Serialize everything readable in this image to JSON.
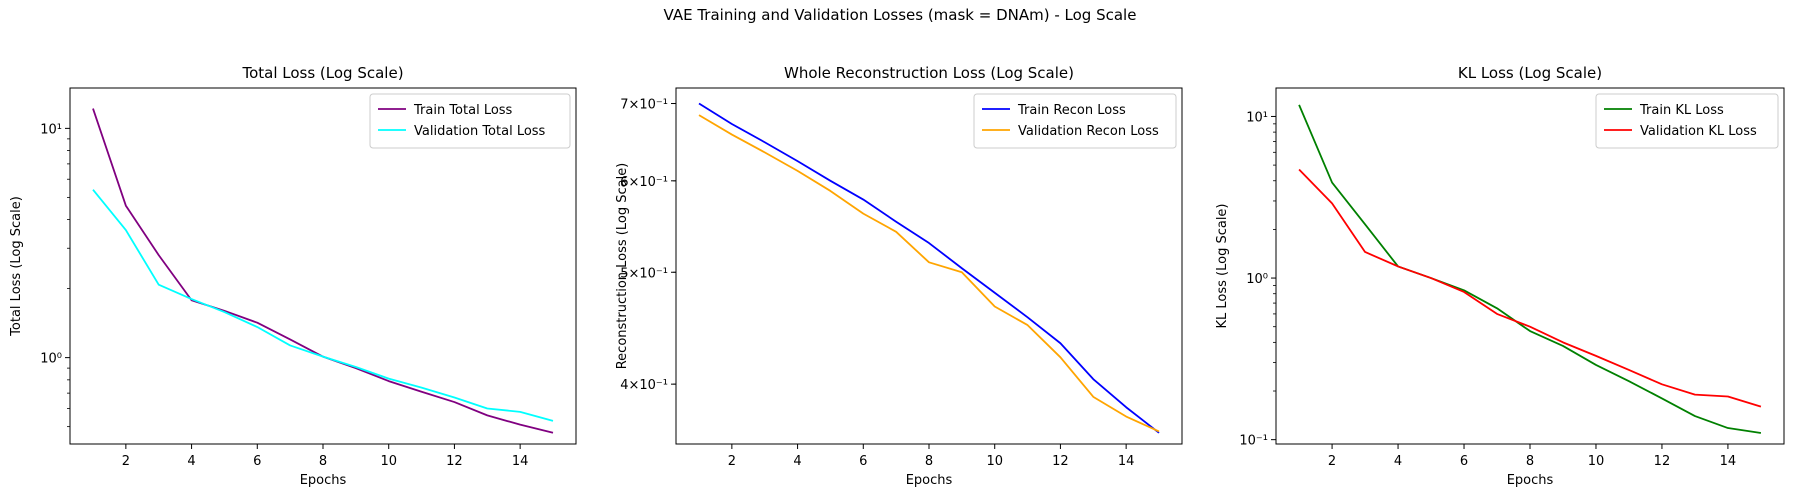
{
  "figure": {
    "suptitle": "VAE Training and Validation Losses (mask = DNAm) - Log Scale"
  },
  "chart_data": [
    {
      "type": "line",
      "title": "Total Loss (Log Scale)",
      "xlabel": "Epochs",
      "ylabel": "Total Loss (Log Scale)",
      "yscale": "log",
      "xlim": [
        0.3,
        15.7
      ],
      "ylim": [
        0.42,
        15
      ],
      "x": [
        1,
        2,
        3,
        4,
        5,
        6,
        7,
        8,
        9,
        10,
        11,
        12,
        13,
        14,
        15
      ],
      "xticks": [
        2,
        4,
        6,
        8,
        10,
        12,
        14
      ],
      "xtick_labels": [
        "2",
        "4",
        "6",
        "8",
        "10",
        "12",
        "14"
      ],
      "yticks": [
        1,
        10
      ],
      "ytick_labels": [
        "10⁰",
        "10¹"
      ],
      "legend_position": "top-right",
      "grid": false,
      "series": [
        {
          "name": "Train Total Loss",
          "color": "#800080",
          "values": [
            12.2,
            4.6,
            2.8,
            1.78,
            1.6,
            1.42,
            1.2,
            1.01,
            0.9,
            0.79,
            0.71,
            0.64,
            0.56,
            0.51,
            0.47
          ]
        },
        {
          "name": "Validation Total Loss",
          "color": "#00ffff",
          "values": [
            5.4,
            3.6,
            2.08,
            1.8,
            1.58,
            1.36,
            1.13,
            1.01,
            0.91,
            0.81,
            0.74,
            0.67,
            0.6,
            0.58,
            0.53
          ]
        }
      ]
    },
    {
      "type": "line",
      "title": "Whole Reconstruction Loss (Log Scale)",
      "xlabel": "Epochs",
      "ylabel": "Reconstruction Loss (Log Scale)",
      "yscale": "log",
      "xlim": [
        0.3,
        15.7
      ],
      "ylim": [
        0.355,
        0.722
      ],
      "x": [
        1,
        2,
        3,
        4,
        5,
        6,
        7,
        8,
        9,
        10,
        11,
        12,
        13,
        14,
        15
      ],
      "xticks": [
        2,
        4,
        6,
        8,
        10,
        12,
        14
      ],
      "xtick_labels": [
        "2",
        "4",
        "6",
        "8",
        "10",
        "12",
        "14"
      ],
      "yticks": [
        0.4,
        0.5,
        0.6,
        0.7
      ],
      "ytick_labels": [
        "4×10⁻¹",
        "5×10⁻¹",
        "6×10⁻¹",
        "7×10⁻¹"
      ],
      "legend_position": "top-right",
      "grid": false,
      "series": [
        {
          "name": "Train Recon Loss",
          "color": "#0000ff",
          "values": [
            0.7,
            0.672,
            0.648,
            0.624,
            0.6,
            0.578,
            0.553,
            0.53,
            0.504,
            0.48,
            0.457,
            0.434,
            0.404,
            0.382,
            0.363
          ]
        },
        {
          "name": "Validation Recon Loss",
          "color": "#ffa500",
          "values": [
            0.684,
            0.658,
            0.635,
            0.612,
            0.588,
            0.562,
            0.542,
            0.51,
            0.5,
            0.467,
            0.45,
            0.422,
            0.39,
            0.375,
            0.364
          ]
        }
      ]
    },
    {
      "type": "line",
      "title": "KL Loss (Log Scale)",
      "xlabel": "Epochs",
      "ylabel": "KL Loss (Log Scale)",
      "yscale": "log",
      "xlim": [
        0.3,
        15.7
      ],
      "ylim": [
        0.094,
        15
      ],
      "x": [
        1,
        2,
        3,
        4,
        5,
        6,
        7,
        8,
        9,
        10,
        11,
        12,
        13,
        14,
        15
      ],
      "xticks": [
        2,
        4,
        6,
        8,
        10,
        12,
        14
      ],
      "xtick_labels": [
        "2",
        "4",
        "6",
        "8",
        "10",
        "12",
        "14"
      ],
      "yticks": [
        0.1,
        1,
        10
      ],
      "ytick_labels": [
        "10⁻¹",
        "10⁰",
        "10¹"
      ],
      "legend_position": "top-right",
      "grid": false,
      "series": [
        {
          "name": "Train KL Loss",
          "color": "#008000",
          "values": [
            11.8,
            3.9,
            2.15,
            1.18,
            1.0,
            0.84,
            0.65,
            0.47,
            0.38,
            0.29,
            0.23,
            0.18,
            0.14,
            0.118,
            0.11
          ]
        },
        {
          "name": "Validation KL Loss",
          "color": "#ff0000",
          "values": [
            4.7,
            2.9,
            1.45,
            1.18,
            1.0,
            0.82,
            0.6,
            0.5,
            0.4,
            0.33,
            0.27,
            0.22,
            0.19,
            0.185,
            0.16
          ]
        }
      ]
    }
  ]
}
